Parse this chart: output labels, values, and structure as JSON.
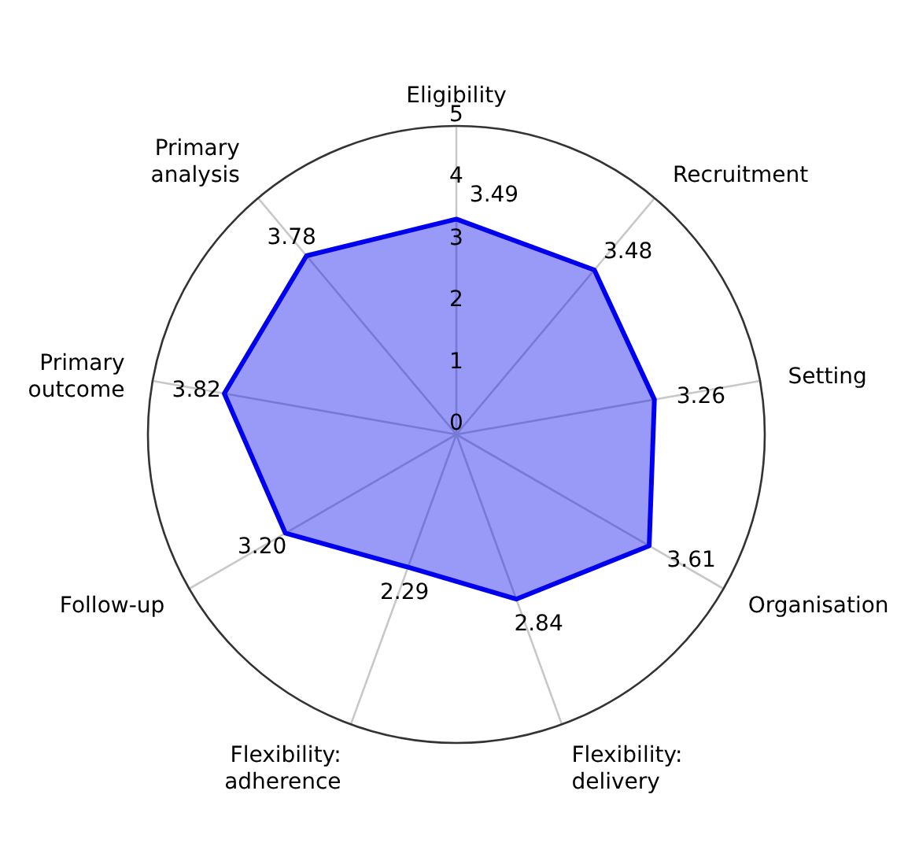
{
  "chart_data": {
    "type": "radar",
    "categories": [
      "Eligibility",
      "Recruitment",
      "Setting",
      "Organisation",
      "Flexibility: delivery",
      "Flexibility: adherence",
      "Follow-up",
      "Primary outcome",
      "Primary analysis"
    ],
    "series": [
      {
        "color": "#0000ee",
        "values": [
          3.49,
          3.48,
          3.26,
          3.61,
          2.84,
          2.29,
          3.2,
          3.82,
          3.78
        ],
        "value_labels": [
          "3.49",
          "3.48",
          "3.26",
          "3.61",
          "2.84",
          "2.29",
          "3.20",
          "3.82",
          "3.78"
        ]
      }
    ],
    "ylim": [
      0,
      5
    ],
    "yticks": [
      0,
      1,
      2,
      3,
      4,
      5
    ],
    "grid": true,
    "marker": "none"
  }
}
